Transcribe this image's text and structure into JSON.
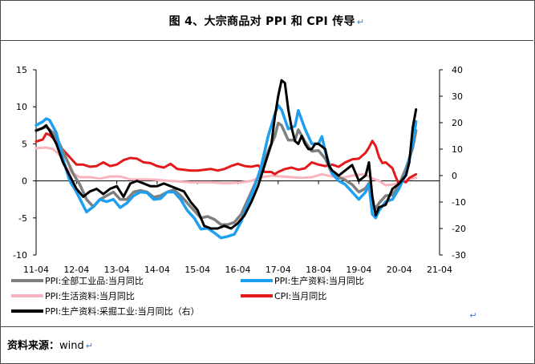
{
  "title": "图 4、大宗商品对 PPI 和 CPI 传导",
  "source_label": "资料来源：",
  "source_value": "wind",
  "return_mark": "↵",
  "chart_data": {
    "type": "line",
    "x_tick_labels": [
      "11-04",
      "12-04",
      "13-04",
      "14-04",
      "15-04",
      "16-04",
      "17-04",
      "18-04",
      "19-04",
      "20-04",
      "21-04"
    ],
    "x_range": [
      0,
      120
    ],
    "x_unit": "months since 2011-04",
    "left_axis": {
      "ticks": [
        15,
        10,
        5,
        0,
        -5,
        -10
      ],
      "ylim": [
        -10,
        15
      ]
    },
    "right_axis": {
      "ticks": [
        40,
        30,
        20,
        10,
        0,
        -10,
        -20,
        -30
      ],
      "ylim": [
        -30,
        40
      ]
    },
    "legend": [
      "PPI:全部工业品:当月同比",
      "PPI:生产资料:当月同比",
      "PPI:生活资料:当月同比",
      "CPI:当月同比",
      "PPI:生产资料:采掘工业:当月同比（右）"
    ],
    "series": [
      {
        "name": "PPI:全部工业品:当月同比",
        "color": "#7f7f7f",
        "axis": "left",
        "points": [
          [
            0,
            6.8
          ],
          [
            3,
            7.3
          ],
          [
            5,
            6.5
          ],
          [
            7,
            5.0
          ],
          [
            9,
            3.0
          ],
          [
            11,
            1.0
          ],
          [
            13,
            -0.5
          ],
          [
            15,
            -2.5
          ],
          [
            17,
            -3.5
          ],
          [
            19,
            -2.5
          ],
          [
            21,
            -2.0
          ],
          [
            23,
            -1.5
          ],
          [
            25,
            -2.5
          ],
          [
            27,
            -2.5
          ],
          [
            29,
            -1.5
          ],
          [
            31,
            -1.3
          ],
          [
            33,
            -1.5
          ],
          [
            35,
            -2.2
          ],
          [
            37,
            -2.0
          ],
          [
            39,
            -1.5
          ],
          [
            41,
            -1.2
          ],
          [
            43,
            -2.0
          ],
          [
            45,
            -3.0
          ],
          [
            47,
            -4.0
          ],
          [
            49,
            -5.0
          ],
          [
            51,
            -4.8
          ],
          [
            53,
            -5.2
          ],
          [
            55,
            -5.9
          ],
          [
            57,
            -5.9
          ],
          [
            59,
            -5.6
          ],
          [
            61,
            -4.5
          ],
          [
            63,
            -2.5
          ],
          [
            65,
            -0.5
          ],
          [
            67,
            1.5
          ],
          [
            69,
            4.0
          ],
          [
            71,
            6.0
          ],
          [
            72,
            7.8
          ],
          [
            73,
            7.5
          ],
          [
            75,
            5.5
          ],
          [
            77,
            5.5
          ],
          [
            78,
            6.9
          ],
          [
            80,
            5.3
          ],
          [
            82,
            4.0
          ],
          [
            84,
            4.1
          ],
          [
            86,
            3.0
          ],
          [
            88,
            1.0
          ],
          [
            90,
            0.5
          ],
          [
            92,
            0.1
          ],
          [
            94,
            -0.5
          ],
          [
            96,
            -1.5
          ],
          [
            98,
            -1.0
          ],
          [
            99,
            -0.3
          ],
          [
            100,
            -3.1
          ],
          [
            101,
            -3.7
          ],
          [
            102,
            -3.0
          ],
          [
            104,
            -2.0
          ],
          [
            106,
            -1.9
          ],
          [
            108,
            -0.5
          ],
          [
            110,
            1.7
          ],
          [
            112,
            4.4
          ],
          [
            113,
            6.8
          ]
        ]
      },
      {
        "name": "PPI:生产资料:当月同比",
        "color": "#1f9ff0",
        "axis": "left",
        "points": [
          [
            0,
            7.5
          ],
          [
            2,
            8.0
          ],
          [
            3,
            8.4
          ],
          [
            4,
            8.2
          ],
          [
            6,
            6.5
          ],
          [
            8,
            3.0
          ],
          [
            10,
            0.0
          ],
          [
            12,
            -1.5
          ],
          [
            14,
            -3.3
          ],
          [
            15,
            -4.2
          ],
          [
            17,
            -3.5
          ],
          [
            19,
            -2.5
          ],
          [
            21,
            -2.8
          ],
          [
            23,
            -2.5
          ],
          [
            25,
            -3.6
          ],
          [
            27,
            -3.0
          ],
          [
            29,
            -2.0
          ],
          [
            31,
            -1.5
          ],
          [
            33,
            -1.6
          ],
          [
            35,
            -2.5
          ],
          [
            37,
            -2.4
          ],
          [
            39,
            -1.5
          ],
          [
            41,
            -1.5
          ],
          [
            43,
            -2.5
          ],
          [
            45,
            -4.0
          ],
          [
            47,
            -5.0
          ],
          [
            49,
            -6.5
          ],
          [
            51,
            -6.4
          ],
          [
            53,
            -7.0
          ],
          [
            55,
            -7.7
          ],
          [
            57,
            -7.5
          ],
          [
            59,
            -7.2
          ],
          [
            61,
            -5.5
          ],
          [
            63,
            -3.0
          ],
          [
            65,
            -0.8
          ],
          [
            67,
            2.0
          ],
          [
            69,
            6.0
          ],
          [
            71,
            9.0
          ],
          [
            72,
            10.2
          ],
          [
            73,
            9.6
          ],
          [
            75,
            7.0
          ],
          [
            77,
            7.4
          ],
          [
            78,
            9.5
          ],
          [
            80,
            7.0
          ],
          [
            82,
            5.0
          ],
          [
            84,
            5.0
          ],
          [
            85,
            6.0
          ],
          [
            86,
            4.0
          ],
          [
            88,
            1.0
          ],
          [
            90,
            0.0
          ],
          [
            92,
            -0.5
          ],
          [
            94,
            -1.5
          ],
          [
            96,
            -2.5
          ],
          [
            98,
            -1.5
          ],
          [
            99,
            -0.5
          ],
          [
            100,
            -4.5
          ],
          [
            101,
            -5.0
          ],
          [
            102,
            -4.0
          ],
          [
            104,
            -2.8
          ],
          [
            106,
            -2.5
          ],
          [
            108,
            -1.0
          ],
          [
            110,
            1.0
          ],
          [
            112,
            5.0
          ],
          [
            113,
            8.0
          ]
        ]
      },
      {
        "name": "PPI:生活资料:当月同比",
        "color": "#f8b5c0",
        "axis": "left",
        "points": [
          [
            0,
            4.4
          ],
          [
            3,
            4.5
          ],
          [
            5,
            4.3
          ],
          [
            7,
            3.5
          ],
          [
            9,
            1.8
          ],
          [
            11,
            1.0
          ],
          [
            13,
            0.5
          ],
          [
            16,
            0.5
          ],
          [
            19,
            0.3
          ],
          [
            22,
            0.6
          ],
          [
            25,
            0.6
          ],
          [
            28,
            0.2
          ],
          [
            31,
            0.2
          ],
          [
            34,
            0.2
          ],
          [
            37,
            0.1
          ],
          [
            40,
            0.0
          ],
          [
            43,
            -0.1
          ],
          [
            46,
            -0.2
          ],
          [
            49,
            -0.2
          ],
          [
            52,
            -0.2
          ],
          [
            55,
            -0.3
          ],
          [
            58,
            -0.3
          ],
          [
            61,
            -0.2
          ],
          [
            64,
            0.0
          ],
          [
            67,
            0.5
          ],
          [
            70,
            0.7
          ],
          [
            73,
            0.6
          ],
          [
            76,
            0.5
          ],
          [
            79,
            0.4
          ],
          [
            82,
            0.5
          ],
          [
            85,
            0.9
          ],
          [
            88,
            0.6
          ],
          [
            91,
            0.4
          ],
          [
            94,
            0.7
          ],
          [
            97,
            0.9
          ],
          [
            99,
            0.6
          ],
          [
            100,
            0.3
          ],
          [
            102,
            0.0
          ],
          [
            104,
            -0.6
          ],
          [
            106,
            -0.5
          ],
          [
            108,
            -0.3
          ],
          [
            110,
            0.1
          ],
          [
            112,
            0.3
          ],
          [
            113,
            0.4
          ]
        ]
      },
      {
        "name": "CPI:当月同比",
        "color": "#e31a1c",
        "axis": "left",
        "points": [
          [
            0,
            5.3
          ],
          [
            2,
            5.6
          ],
          [
            3,
            6.4
          ],
          [
            4,
            6.2
          ],
          [
            6,
            5.4
          ],
          [
            8,
            4.2
          ],
          [
            10,
            3.2
          ],
          [
            12,
            2.2
          ],
          [
            14,
            2.2
          ],
          [
            16,
            1.9
          ],
          [
            18,
            2.0
          ],
          [
            20,
            2.5
          ],
          [
            22,
            2.0
          ],
          [
            24,
            2.2
          ],
          [
            26,
            2.8
          ],
          [
            28,
            3.1
          ],
          [
            30,
            3.0
          ],
          [
            32,
            2.5
          ],
          [
            34,
            2.4
          ],
          [
            36,
            2.0
          ],
          [
            38,
            1.8
          ],
          [
            40,
            2.3
          ],
          [
            42,
            1.6
          ],
          [
            44,
            1.5
          ],
          [
            46,
            1.4
          ],
          [
            48,
            1.4
          ],
          [
            50,
            1.5
          ],
          [
            52,
            1.6
          ],
          [
            54,
            1.4
          ],
          [
            56,
            1.6
          ],
          [
            58,
            2.0
          ],
          [
            60,
            2.3
          ],
          [
            62,
            2.0
          ],
          [
            64,
            1.9
          ],
          [
            66,
            2.1
          ],
          [
            68,
            1.2
          ],
          [
            70,
            1.2
          ],
          [
            71,
            0.9
          ],
          [
            72,
            1.2
          ],
          [
            74,
            1.6
          ],
          [
            76,
            1.8
          ],
          [
            78,
            1.5
          ],
          [
            80,
            1.7
          ],
          [
            82,
            2.5
          ],
          [
            84,
            2.2
          ],
          [
            86,
            2.0
          ],
          [
            88,
            2.2
          ],
          [
            90,
            1.9
          ],
          [
            92,
            2.5
          ],
          [
            94,
            2.9
          ],
          [
            96,
            3.0
          ],
          [
            98,
            3.8
          ],
          [
            99,
            4.5
          ],
          [
            100,
            5.4
          ],
          [
            101,
            4.7
          ],
          [
            102,
            3.2
          ],
          [
            103,
            2.4
          ],
          [
            104,
            2.5
          ],
          [
            106,
            1.7
          ],
          [
            107,
            0.5
          ],
          [
            108,
            -0.5
          ],
          [
            109,
            0.0
          ],
          [
            110,
            -0.2
          ],
          [
            111,
            0.4
          ],
          [
            113,
            0.9
          ]
        ]
      },
      {
        "name": "PPI:生产资料:采掘工业:当月同比（右）",
        "color": "#000000",
        "axis": "right",
        "points": [
          [
            0,
            17
          ],
          [
            2,
            18
          ],
          [
            3,
            19
          ],
          [
            4,
            17
          ],
          [
            6,
            12
          ],
          [
            8,
            5
          ],
          [
            10,
            0
          ],
          [
            12,
            -5
          ],
          [
            14,
            -8
          ],
          [
            16,
            -6
          ],
          [
            18,
            -5
          ],
          [
            20,
            -7
          ],
          [
            22,
            -5
          ],
          [
            24,
            -4
          ],
          [
            26,
            -8
          ],
          [
            28,
            -3
          ],
          [
            30,
            -2
          ],
          [
            32,
            -3
          ],
          [
            34,
            -4
          ],
          [
            36,
            -4
          ],
          [
            38,
            -3
          ],
          [
            40,
            -4
          ],
          [
            42,
            -5
          ],
          [
            44,
            -6
          ],
          [
            46,
            -10
          ],
          [
            48,
            -13
          ],
          [
            50,
            -19
          ],
          [
            52,
            -20
          ],
          [
            54,
            -20
          ],
          [
            56,
            -19
          ],
          [
            58,
            -20
          ],
          [
            60,
            -18
          ],
          [
            62,
            -15
          ],
          [
            64,
            -10
          ],
          [
            66,
            -4
          ],
          [
            68,
            4
          ],
          [
            70,
            12
          ],
          [
            71,
            22
          ],
          [
            72,
            30
          ],
          [
            73,
            36
          ],
          [
            74,
            35
          ],
          [
            75,
            25
          ],
          [
            76,
            18
          ],
          [
            77,
            13
          ],
          [
            78,
            12
          ],
          [
            79,
            15
          ],
          [
            80,
            12
          ],
          [
            81,
            10
          ],
          [
            82,
            10
          ],
          [
            83,
            12
          ],
          [
            84,
            12
          ],
          [
            85,
            11
          ],
          [
            86,
            10
          ],
          [
            87,
            4
          ],
          [
            88,
            2
          ],
          [
            90,
            0
          ],
          [
            92,
            2
          ],
          [
            94,
            4
          ],
          [
            95,
            1
          ],
          [
            96,
            -2
          ],
          [
            98,
            0
          ],
          [
            99,
            5
          ],
          [
            100,
            -8
          ],
          [
            101,
            -15
          ],
          [
            102,
            -12
          ],
          [
            104,
            -11
          ],
          [
            106,
            -5
          ],
          [
            108,
            -3
          ],
          [
            110,
            0
          ],
          [
            111,
            5
          ],
          [
            112,
            18
          ],
          [
            113,
            25
          ]
        ]
      }
    ]
  }
}
